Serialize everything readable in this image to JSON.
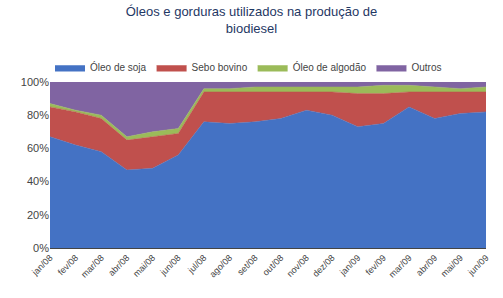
{
  "chart_data": {
    "type": "area",
    "stacked": true,
    "title": "Óleos e gorduras utilizados na produção de\nbiodiesel",
    "categories": [
      "jan/08",
      "fev/08",
      "mar/08",
      "abr/08",
      "mai/08",
      "jun/08",
      "jul/08",
      "ago/08",
      "set/08",
      "out/08",
      "nov/08",
      "dez/08",
      "jan/09",
      "fev/09",
      "mar/09",
      "abr/09",
      "mai/09",
      "jun/09"
    ],
    "series": [
      {
        "name": "Óleo de soja",
        "color": "#4472C4",
        "values": [
          67,
          62,
          58,
          47,
          48,
          56,
          76,
          75,
          76,
          78,
          83,
          80,
          73,
          75,
          85,
          78,
          81,
          82
        ]
      },
      {
        "name": "Sebo bovino",
        "color": "#C0504D",
        "values": [
          18,
          20,
          20,
          18,
          19,
          13,
          18,
          19,
          18,
          16,
          11,
          14,
          20,
          18,
          9,
          16,
          13,
          12
        ]
      },
      {
        "name": "Óleo de algodão",
        "color": "#9BBB59",
        "values": [
          2,
          1,
          2,
          2,
          3,
          3,
          2,
          2,
          3,
          3,
          3,
          3,
          4,
          5,
          4,
          3,
          2,
          3
        ]
      },
      {
        "name": "Outros",
        "color": "#8064A2",
        "values": [
          13,
          17,
          20,
          33,
          30,
          28,
          4,
          4,
          3,
          3,
          3,
          3,
          3,
          2,
          2,
          3,
          4,
          3
        ]
      }
    ],
    "ylim": [
      0,
      100
    ],
    "yticks": [
      {
        "value": 0,
        "label": "0%"
      },
      {
        "value": 20,
        "label": "20%"
      },
      {
        "value": 40,
        "label": "40%"
      },
      {
        "value": 60,
        "label": "60%"
      },
      {
        "value": 80,
        "label": "80%"
      },
      {
        "value": 100,
        "label": "100%"
      }
    ],
    "legend": "upper left",
    "grid": false
  }
}
